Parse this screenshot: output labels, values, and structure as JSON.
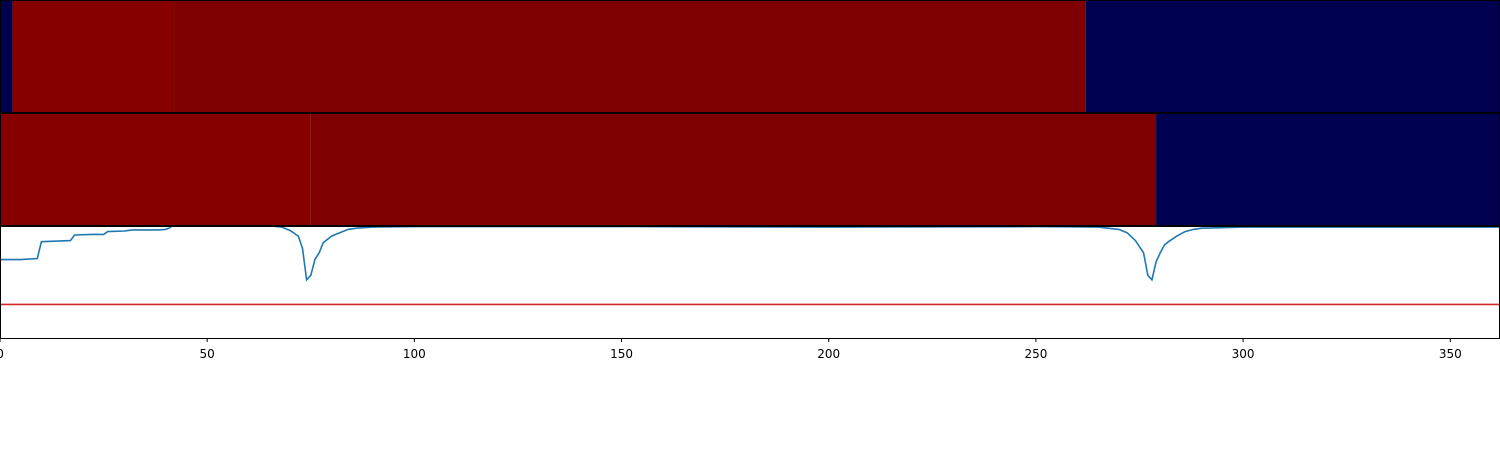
{
  "chart_data": [
    {
      "type": "heatmap",
      "panel": "segment-track-1",
      "x_unit": "frame",
      "segments": [
        {
          "start": 0,
          "end": 3,
          "color": "#000050"
        },
        {
          "start": 3,
          "end": 42,
          "color": "#860000"
        },
        {
          "start": 42,
          "end": 262,
          "color": "#7e0000"
        },
        {
          "start": 262,
          "end": 362,
          "color": "#000050"
        }
      ]
    },
    {
      "type": "heatmap",
      "panel": "segment-track-2",
      "x_unit": "frame",
      "segments": [
        {
          "start": 0,
          "end": 75,
          "color": "#860000"
        },
        {
          "start": 75,
          "end": 279,
          "color": "#7e0000"
        },
        {
          "start": 279,
          "end": 362,
          "color": "#000050"
        }
      ]
    },
    {
      "type": "line",
      "panel": "signal-track",
      "xlim": [
        0,
        362
      ],
      "ylim": [
        0,
        1
      ],
      "x_ticks": [
        0,
        50,
        100,
        150,
        200,
        250,
        300,
        350
      ],
      "x_tick_labels": [
        "0",
        "50",
        "100",
        "150",
        "200",
        "250",
        "300",
        "350"
      ],
      "series": [
        {
          "color": "#1f77b4",
          "x": [
            0,
            5,
            9,
            10,
            14,
            17,
            18,
            22,
            25,
            26,
            30,
            32,
            36,
            38,
            40,
            41,
            42,
            60,
            68,
            70,
            72,
            73,
            74,
            75,
            76,
            77,
            78,
            80,
            82,
            84,
            86,
            90,
            100,
            150,
            200,
            250,
            265,
            270,
            272,
            274,
            276,
            277,
            278,
            279,
            280,
            281,
            282,
            284,
            286,
            288,
            290,
            295,
            300,
            330,
            362
          ],
          "y": [
            0.7,
            0.7,
            0.71,
            0.86,
            0.865,
            0.87,
            0.92,
            0.925,
            0.925,
            0.95,
            0.955,
            0.965,
            0.965,
            0.965,
            0.97,
            0.985,
            1.02,
            1.02,
            0.99,
            0.96,
            0.91,
            0.8,
            0.52,
            0.56,
            0.7,
            0.76,
            0.85,
            0.91,
            0.94,
            0.97,
            0.98,
            0.99,
            0.995,
            0.995,
            0.99,
            0.995,
            0.99,
            0.97,
            0.94,
            0.87,
            0.76,
            0.56,
            0.52,
            0.68,
            0.76,
            0.83,
            0.86,
            0.91,
            0.95,
            0.97,
            0.98,
            0.985,
            0.99,
            0.99,
            0.99
          ]
        },
        {
          "color": "#d62728",
          "x": [
            0,
            362
          ],
          "y": [
            0.3,
            0.3
          ]
        }
      ]
    }
  ]
}
